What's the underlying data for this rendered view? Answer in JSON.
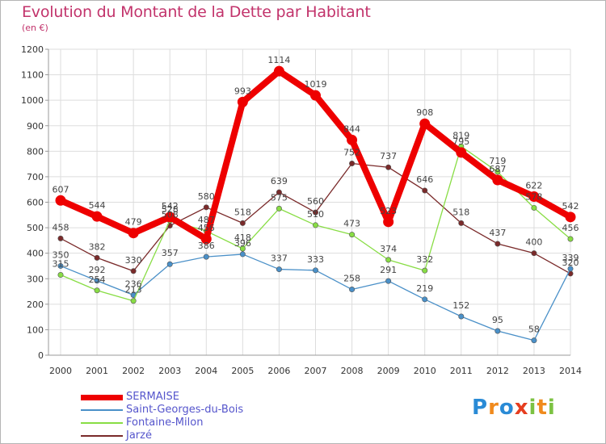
{
  "title": "Evolution du Montant de la Dette par Habitant",
  "unit": "(en €)",
  "logo": {
    "letters": [
      "P",
      "r",
      "o",
      "x",
      "i",
      "t",
      "i"
    ],
    "colors": [
      "#2a8bd6",
      "#f08a1d",
      "#2a8bd6",
      "#e63d1f",
      "#7cc242",
      "#f08a1d",
      "#7cc242"
    ]
  },
  "chart_data": {
    "type": "line",
    "x": [
      "2000",
      "2001",
      "2002",
      "2003",
      "2004",
      "2005",
      "2006",
      "2007",
      "2008",
      "2009",
      "2010",
      "2011",
      "2012",
      "2013",
      "2014"
    ],
    "ylim": [
      0,
      1200
    ],
    "yticks": [
      "0",
      "100",
      "200",
      "300",
      "400",
      "500",
      "600",
      "700",
      "800",
      "900",
      "1000",
      "1100",
      "1200"
    ],
    "grid": true,
    "legend": "bottom-left",
    "series": [
      {
        "name": "SERMAISE",
        "color": "#ee0000",
        "values": [
          607,
          544,
          479,
          542,
          456,
          993,
          1114,
          1019,
          844,
          523,
          908,
          795,
          687,
          622,
          542
        ],
        "labels": [
          "607",
          "544",
          "479",
          "542",
          "456",
          "993",
          "1114",
          "1019",
          "844",
          "523",
          "908",
          "795",
          "687",
          "622",
          "542"
        ]
      },
      {
        "name": "Saint-Georges-du-Bois",
        "color": "#4a90c8",
        "values": [
          350,
          292,
          236,
          357,
          386,
          396,
          337,
          333,
          258,
          291,
          219,
          152,
          95,
          58,
          339
        ],
        "labels": [
          "350",
          "292",
          "236",
          "357",
          "386",
          "396",
          "337",
          "333",
          "258",
          "291",
          "219",
          "152",
          "95",
          "58",
          "339"
        ]
      },
      {
        "name": "Fontaine-Milon",
        "color": "#88dd44",
        "values": [
          315,
          254,
          213,
          528,
          487,
          418,
          575,
          510,
          473,
          374,
          332,
          819,
          719,
          578,
          456
        ],
        "labels": [
          "315",
          "254",
          "213",
          "528",
          "487",
          "418",
          "575",
          "510",
          "473",
          "374",
          "332",
          "819",
          "719",
          "578",
          "456"
        ]
      },
      {
        "name": "Jarzé",
        "color": "#7a2a2a",
        "values": [
          458,
          382,
          330,
          508,
          580,
          518,
          639,
          560,
          752,
          737,
          646,
          518,
          437,
          400,
          320
        ],
        "labels": [
          "458",
          "382",
          "330",
          "508",
          "580",
          "518",
          "639",
          "560",
          "752",
          "737",
          "646",
          "518",
          "437",
          "400",
          "320"
        ]
      }
    ]
  }
}
